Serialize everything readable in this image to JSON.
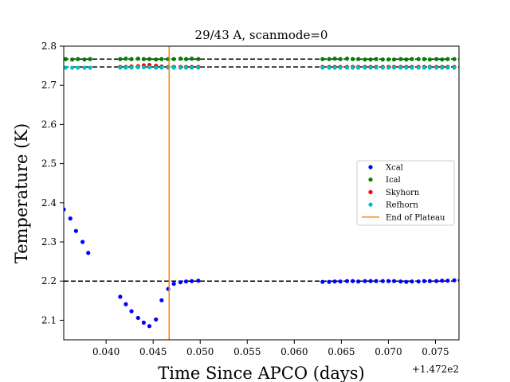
{
  "chart_data": {
    "type": "scatter",
    "title": "29/43 A, scanmode=0",
    "xlabel": "Time Since APCO (days)",
    "ylabel": "Temperature (K)",
    "x_offset_label": "+1.472e2",
    "xlim": [
      0.0355,
      0.0775
    ],
    "ylim": [
      2.05,
      2.8
    ],
    "xticks": [
      0.04,
      0.045,
      0.05,
      0.055,
      0.06,
      0.065,
      0.07,
      0.075
    ],
    "xtick_labels": [
      "0.040",
      "0.045",
      "0.050",
      "0.055",
      "0.060",
      "0.065",
      "0.070",
      "0.075"
    ],
    "yticks": [
      2.1,
      2.2,
      2.3,
      2.4,
      2.5,
      2.6,
      2.7,
      2.8
    ],
    "ytick_labels": [
      "2.1",
      "2.2",
      "2.3",
      "2.4",
      "2.5",
      "2.6",
      "2.7",
      "2.8"
    ],
    "grid": false,
    "legend_position": "center-right",
    "reference_lines": [
      {
        "y": 2.767,
        "style": "dashed",
        "color": "#000000"
      },
      {
        "y": 2.747,
        "style": "dashed",
        "color": "#000000"
      },
      {
        "y": 2.2,
        "style": "dashed",
        "color": "#000000"
      }
    ],
    "end_of_plateau_x": 0.0467,
    "series": [
      {
        "name": "Xcal",
        "color": "#0000ff",
        "x": [
          0.0355,
          0.0362,
          0.0368,
          0.0375,
          0.0381,
          0.0415,
          0.0421,
          0.0427,
          0.0434,
          0.044,
          0.0446,
          0.0453,
          0.0459,
          0.0466,
          0.0472,
          0.0479,
          0.0485,
          0.0491,
          0.0498,
          0.063,
          0.0637,
          0.0643,
          0.0649,
          0.0656,
          0.0662,
          0.0668,
          0.0675,
          0.0681,
          0.0687,
          0.0694,
          0.07,
          0.0706,
          0.0713,
          0.0719,
          0.0725,
          0.0732,
          0.0738,
          0.0744,
          0.0751,
          0.0757,
          0.0763,
          0.077,
          0.0776
        ],
        "y": [
          2.383,
          2.36,
          2.328,
          2.3,
          2.272,
          2.16,
          2.141,
          2.123,
          2.106,
          2.094,
          2.085,
          2.102,
          2.151,
          2.18,
          2.193,
          2.197,
          2.199,
          2.2,
          2.201,
          2.198,
          2.198,
          2.199,
          2.199,
          2.2,
          2.2,
          2.199,
          2.2,
          2.2,
          2.2,
          2.2,
          2.2,
          2.2,
          2.199,
          2.198,
          2.199,
          2.199,
          2.2,
          2.2,
          2.2,
          2.201,
          2.201,
          2.202,
          2.202
        ]
      },
      {
        "name": "Ical",
        "color": "#008000",
        "x": [
          0.0357,
          0.0364,
          0.037,
          0.0377,
          0.0383,
          0.0415,
          0.0421,
          0.0427,
          0.0434,
          0.044,
          0.0446,
          0.0453,
          0.0459,
          0.0466,
          0.0472,
          0.0479,
          0.0485,
          0.0491,
          0.0498,
          0.063,
          0.0637,
          0.0643,
          0.0649,
          0.0656,
          0.0662,
          0.0668,
          0.0675,
          0.0681,
          0.0687,
          0.0694,
          0.07,
          0.0706,
          0.0713,
          0.0719,
          0.0725,
          0.0732,
          0.0738,
          0.0744,
          0.0751,
          0.0757,
          0.0763,
          0.077
        ],
        "y": [
          2.767,
          2.766,
          2.767,
          2.766,
          2.767,
          2.767,
          2.768,
          2.767,
          2.768,
          2.767,
          2.767,
          2.766,
          2.767,
          2.767,
          2.767,
          2.768,
          2.767,
          2.768,
          2.767,
          2.767,
          2.767,
          2.768,
          2.767,
          2.768,
          2.767,
          2.767,
          2.766,
          2.766,
          2.767,
          2.766,
          2.766,
          2.766,
          2.767,
          2.766,
          2.767,
          2.767,
          2.767,
          2.766,
          2.767,
          2.766,
          2.767,
          2.767
        ]
      },
      {
        "name": "Skyhorn",
        "color": "#ff0000",
        "x": [
          0.0415,
          0.0421,
          0.0427,
          0.0434,
          0.044,
          0.0446,
          0.0453,
          0.0459,
          0.0466,
          0.0472,
          0.0479,
          0.0485,
          0.0491,
          0.0498,
          0.063,
          0.0637,
          0.0643,
          0.0649,
          0.0656,
          0.0662,
          0.0668,
          0.0675,
          0.0681,
          0.0687,
          0.0694,
          0.07,
          0.0706,
          0.0713,
          0.0719,
          0.0725,
          0.0732,
          0.0738,
          0.0744,
          0.0751,
          0.0757,
          0.0763,
          0.077
        ],
        "y": [
          2.747,
          2.747,
          2.748,
          2.749,
          2.751,
          2.752,
          2.75,
          2.748,
          2.747,
          2.747,
          2.747,
          2.747,
          2.747,
          2.747,
          2.747,
          2.747,
          2.747,
          2.747,
          2.747,
          2.747,
          2.747,
          2.747,
          2.747,
          2.747,
          2.747,
          2.747,
          2.747,
          2.747,
          2.747,
          2.747,
          2.747,
          2.747,
          2.747,
          2.747,
          2.747,
          2.747,
          2.747
        ]
      },
      {
        "name": "Refhorn",
        "color": "#00bfbf",
        "x": [
          0.0357,
          0.0364,
          0.037,
          0.0377,
          0.0383,
          0.0415,
          0.0421,
          0.0427,
          0.0434,
          0.044,
          0.0446,
          0.0453,
          0.0459,
          0.0466,
          0.0472,
          0.0479,
          0.0485,
          0.0491,
          0.0498,
          0.063,
          0.0637,
          0.0643,
          0.0649,
          0.0656,
          0.0662,
          0.0668,
          0.0675,
          0.0681,
          0.0687,
          0.0694,
          0.07,
          0.0706,
          0.0713,
          0.0719,
          0.0725,
          0.0732,
          0.0738,
          0.0744,
          0.0751,
          0.0757,
          0.0763,
          0.077
        ],
        "y": [
          2.745,
          2.745,
          2.745,
          2.745,
          2.745,
          2.745,
          2.745,
          2.745,
          2.746,
          2.746,
          2.746,
          2.745,
          2.745,
          2.745,
          2.745,
          2.745,
          2.745,
          2.745,
          2.745,
          2.745,
          2.745,
          2.745,
          2.745,
          2.745,
          2.745,
          2.745,
          2.745,
          2.745,
          2.745,
          2.745,
          2.745,
          2.745,
          2.745,
          2.745,
          2.745,
          2.745,
          2.745,
          2.745,
          2.745,
          2.745,
          2.745,
          2.745
        ]
      }
    ],
    "legend": [
      {
        "label": "Xcal",
        "kind": "marker",
        "color": "#0000ff"
      },
      {
        "label": "Ical",
        "kind": "marker",
        "color": "#008000"
      },
      {
        "label": "Skyhorn",
        "kind": "marker",
        "color": "#ff0000"
      },
      {
        "label": "Refhorn",
        "kind": "marker",
        "color": "#00bfbf"
      },
      {
        "label": "End of Plateau",
        "kind": "line",
        "color": "#ff7f0e"
      }
    ]
  }
}
